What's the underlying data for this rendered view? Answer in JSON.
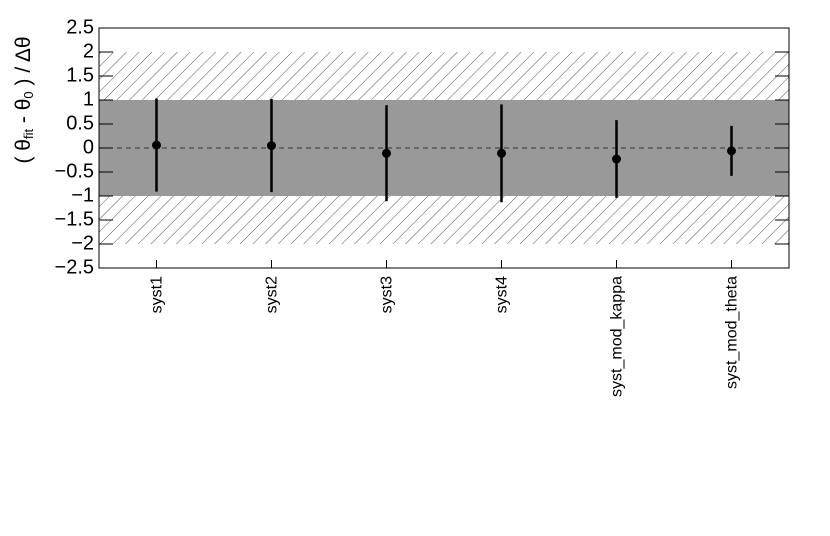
{
  "chart_data": {
    "type": "pull",
    "y_label_parts": [
      "( θ",
      "fit",
      " - θ",
      "0",
      " ) / Δθ"
    ],
    "categories": [
      "syst1",
      "syst2",
      "syst3",
      "syst4",
      "syst_mod_kappa",
      "syst_mod_theta"
    ],
    "values": [
      0.06,
      0.05,
      -0.11,
      -0.11,
      -0.23,
      -0.06
    ],
    "errors": [
      0.97,
      0.97,
      1.0,
      1.02,
      0.81,
      0.52
    ],
    "color": "#000000",
    "ylim": [
      -2.5,
      2.5
    ],
    "yticks": [
      {
        "value": -2.5,
        "label": "−2.5"
      },
      {
        "value": -2,
        "label": "−2"
      },
      {
        "value": -1.5,
        "label": "−1.5"
      },
      {
        "value": -1,
        "label": "−1"
      },
      {
        "value": -0.5,
        "label": "−0.5"
      },
      0,
      0.5,
      1,
      1.5,
      2,
      2.5
    ],
    "bands": [
      {
        "range": [
          -2,
          2
        ],
        "style": "hatch",
        "color": "#555555"
      },
      {
        "range": [
          -1,
          1
        ],
        "style": "fill",
        "color": "#999999"
      }
    ],
    "reference_line": 0
  }
}
